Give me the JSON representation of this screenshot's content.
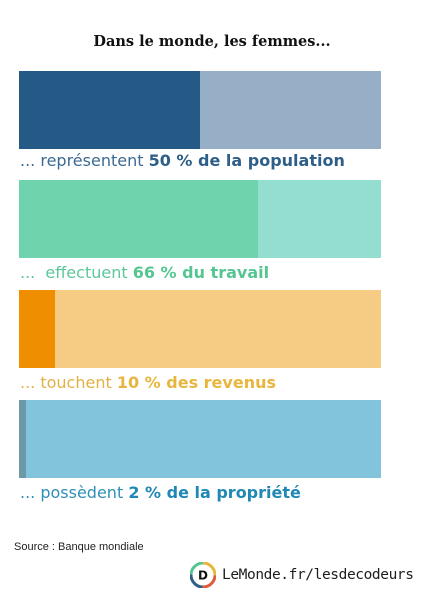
{
  "title": "Dans le monde, les femmes...",
  "chart_data": {
    "type": "bar",
    "orientation": "horizontal-stacked-100",
    "title": "Dans le monde, les femmes...",
    "categories": [
      "... représentent 50 % de la population",
      "...  effectuent 66 % du travail",
      "... touchent 10 % des revenus",
      "... possèdent 2 % de la propriété"
    ],
    "values": [
      50,
      66,
      10,
      2
    ],
    "unit": "%",
    "xlim": [
      0,
      100
    ],
    "rows": [
      {
        "prefix": "... représentent ",
        "value_text": "50 % de la population",
        "value": 50,
        "dark": "#255a86",
        "light": "#97afc6",
        "prefix_color": "#3b6a92",
        "value_color": "#2e5f88"
      },
      {
        "prefix": "...  effectuent ",
        "value_text": "66 % du travail",
        "value": 66,
        "dark": "#6fd4ad",
        "light": "#93ddd1",
        "prefix_color": "#5cc79a",
        "value_color": "#55c592"
      },
      {
        "prefix": "... touchent ",
        "value_text": "10 % des revenus",
        "value": 10,
        "dark": "#ef8e00",
        "light": "#f6cb84",
        "prefix_color": "#e2b146",
        "value_color": "#e8b63e"
      },
      {
        "prefix": "... possèdent ",
        "value_text": "2 % de la propriété",
        "value": 2,
        "dark": "#6c98a8",
        "light": "#83c4dd",
        "prefix_color": "#2f8fb6",
        "value_color": "#1f88b4"
      }
    ]
  },
  "source": "Source  : Banque mondiale",
  "brand": "LeMonde.fr/lesdecodeurs",
  "brand_icon_letter": "D"
}
